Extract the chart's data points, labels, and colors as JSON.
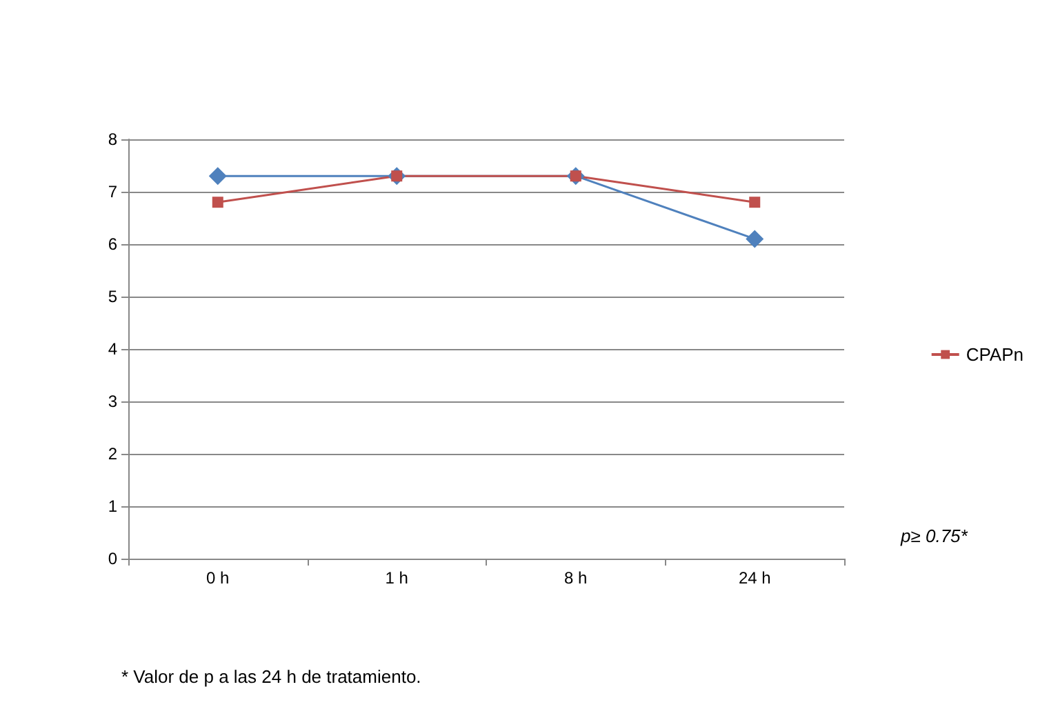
{
  "chart_data": {
    "type": "line",
    "categories": [
      "0 h",
      "1 h",
      "8 h",
      "24 h"
    ],
    "series": [
      {
        "color": "#4f81bd",
        "marker": "diamond",
        "values": [
          7.3,
          7.3,
          7.3,
          6.1
        ]
      },
      {
        "name": "CPAPn",
        "color": "#c0504d",
        "marker": "square",
        "values": [
          6.8,
          7.3,
          7.3,
          6.8
        ]
      }
    ],
    "ylim": [
      0,
      8
    ],
    "yticks": [
      0,
      1,
      2,
      3,
      4,
      5,
      6,
      7,
      8
    ],
    "grid": "y",
    "legend": "right",
    "annotations": [
      "p≥ 0.75*",
      "* Valor de p a las 24 h de tratamiento."
    ]
  }
}
